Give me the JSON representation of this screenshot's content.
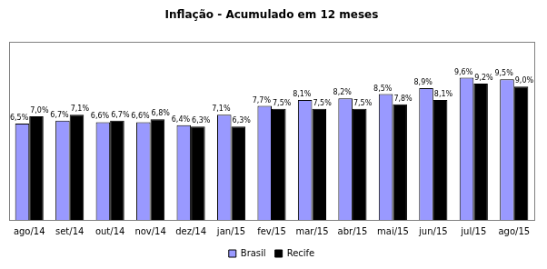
{
  "chart_data": {
    "type": "bar",
    "title": "Inflação - Acumulado em 12 meses",
    "categories": [
      "ago/14",
      "set/14",
      "out/14",
      "nov/14",
      "dez/14",
      "jan/15",
      "fev/15",
      "mar/15",
      "abr/15",
      "mai/15",
      "jun/15",
      "jul/15",
      "ago/15"
    ],
    "series": [
      {
        "name": "Brasil",
        "color": "#9999ff",
        "values": [
          6.5,
          6.7,
          6.6,
          6.6,
          6.4,
          7.1,
          7.7,
          8.1,
          8.2,
          8.5,
          8.9,
          9.6,
          9.5
        ],
        "value_labels": [
          "6,5%",
          "6,7%",
          "6,6%",
          "6,6%",
          "6,4%",
          "7,1%",
          "7,7%",
          "8,1%",
          "8,2%",
          "8,5%",
          "8,9%",
          "9,6%",
          "9,5%"
        ]
      },
      {
        "name": "Recife",
        "color": "#000000",
        "values": [
          7.0,
          7.1,
          6.7,
          6.8,
          6.3,
          6.3,
          7.5,
          7.5,
          7.5,
          7.8,
          8.1,
          9.2,
          9.0
        ],
        "value_labels": [
          "7,0%",
          "7,1%",
          "6,7%",
          "6,8%",
          "6,3%",
          "6,3%",
          "7,5%",
          "7,5%",
          "7,5%",
          "7,8%",
          "8,1%",
          "9,2%",
          "9,0%"
        ]
      }
    ],
    "ylim": [
      0,
      12
    ],
    "grid": false,
    "legend": "bottom",
    "data_labels": true,
    "tick_labels": "x"
  }
}
